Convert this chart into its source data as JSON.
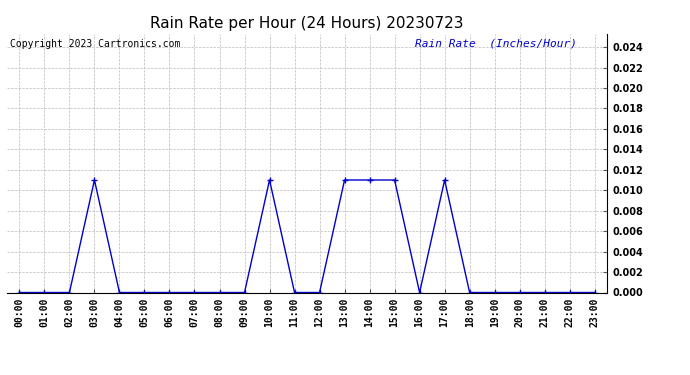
{
  "title": "Rain Rate per Hour (24 Hours) 20230723",
  "copyright_text": "Copyright 2023 Cartronics.com",
  "legend_label": "Rain Rate  (Inches/Hour)",
  "hours": [
    0,
    1,
    2,
    3,
    4,
    5,
    6,
    7,
    8,
    9,
    10,
    11,
    12,
    13,
    14,
    15,
    16,
    17,
    18,
    19,
    20,
    21,
    22,
    23
  ],
  "values": [
    0.0,
    0.0,
    0.0,
    0.011,
    0.0,
    0.0,
    0.0,
    0.0,
    0.0,
    0.0,
    0.011,
    0.0,
    0.0,
    0.011,
    0.011,
    0.011,
    0.0,
    0.011,
    0.0,
    0.0,
    0.0,
    0.0,
    0.0,
    0.0
  ],
  "line_color": "#0000cc",
  "marker_color": "#0000cc",
  "grid_color": "#bbbbbb",
  "background_color": "#ffffff",
  "title_color": "#000000",
  "copyright_color": "#000000",
  "legend_color": "#0000cc",
  "ylim": [
    0.0,
    0.0253
  ],
  "yticks": [
    0.0,
    0.002,
    0.004,
    0.006,
    0.008,
    0.01,
    0.012,
    0.014,
    0.016,
    0.018,
    0.02,
    0.022,
    0.024
  ],
  "title_fontsize": 11,
  "axis_fontsize": 7,
  "copyright_fontsize": 7,
  "legend_fontsize": 8
}
